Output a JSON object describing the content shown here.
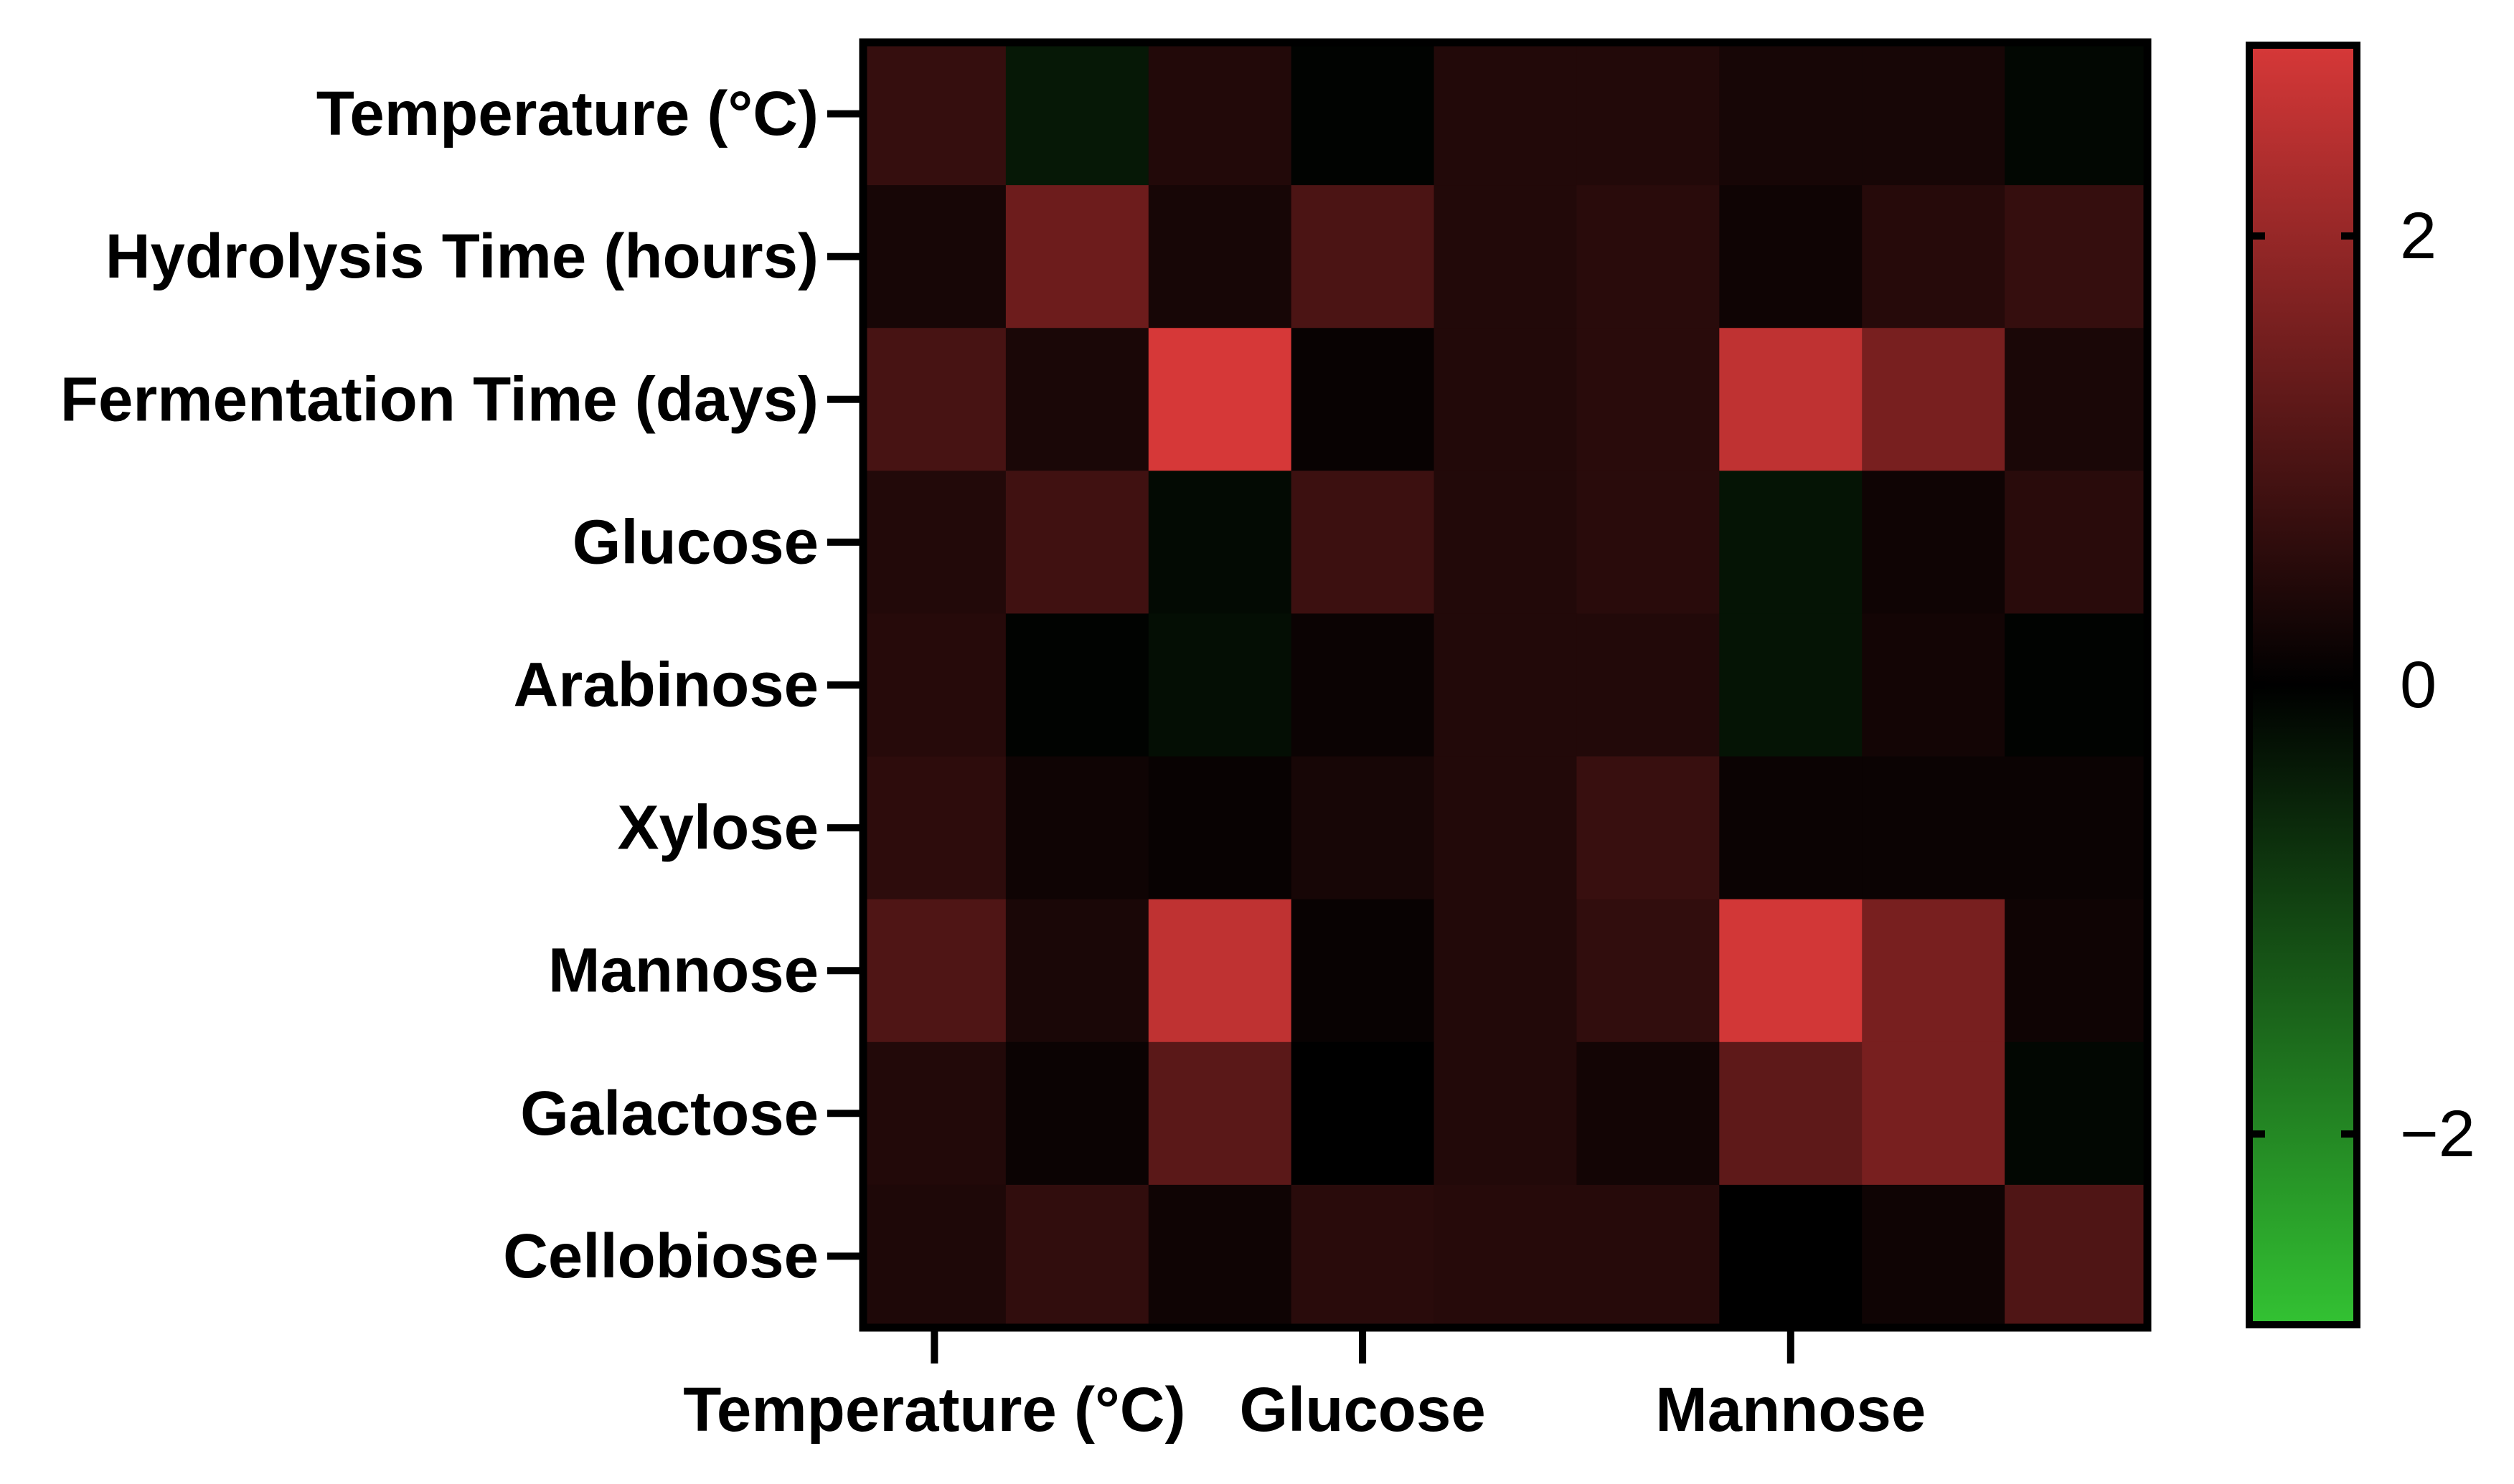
{
  "chart_data": {
    "type": "heatmap",
    "title": "",
    "xlabel": "",
    "ylabel": "",
    "rows": [
      "Temperature (°C)",
      "Hydrolysis Time (hours)",
      "Fermentation Time (days)",
      "Glucose",
      "Arabinose",
      "Xylose",
      "Mannose",
      "Galactose",
      "Cellobiose"
    ],
    "x_tick_labels": [
      {
        "column": 0,
        "label": "Temperature (°C)"
      },
      {
        "column": 3,
        "label": "Glucose"
      },
      {
        "column": 6,
        "label": "Mannose"
      }
    ],
    "values": [
      [
        0.7,
        -0.35,
        0.45,
        -0.05,
        0.45,
        0.45,
        0.3,
        0.3,
        -0.1
      ],
      [
        0.3,
        1.45,
        0.3,
        1.0,
        0.45,
        0.55,
        0.2,
        0.5,
        0.7
      ],
      [
        0.95,
        0.35,
        2.85,
        0.1,
        0.45,
        0.55,
        2.55,
        1.6,
        0.35
      ],
      [
        0.45,
        0.85,
        -0.15,
        0.8,
        0.45,
        0.55,
        -0.3,
        0.2,
        0.55
      ],
      [
        0.5,
        -0.05,
        -0.2,
        0.15,
        0.45,
        0.45,
        -0.3,
        0.25,
        -0.05
      ],
      [
        0.6,
        0.2,
        0.1,
        0.3,
        0.45,
        0.75,
        0.15,
        0.15,
        0.15
      ],
      [
        1.05,
        0.35,
        2.55,
        0.1,
        0.45,
        0.65,
        2.8,
        1.6,
        0.2
      ],
      [
        0.45,
        0.15,
        1.2,
        0.0,
        0.45,
        0.25,
        1.25,
        1.6,
        -0.1
      ],
      [
        0.4,
        0.65,
        0.2,
        0.55,
        0.5,
        0.5,
        0.0,
        0.2,
        1.05
      ]
    ],
    "colorbar": {
      "range": [
        -2.85,
        2.85
      ],
      "ticks": [
        2,
        0,
        -2
      ],
      "tick_labels": [
        "2",
        "0",
        "−2"
      ],
      "colors": {
        "low": "#33c233",
        "mid": "#000000",
        "high": "#d63838"
      }
    },
    "grid": false,
    "legend": "colorbar-right"
  }
}
